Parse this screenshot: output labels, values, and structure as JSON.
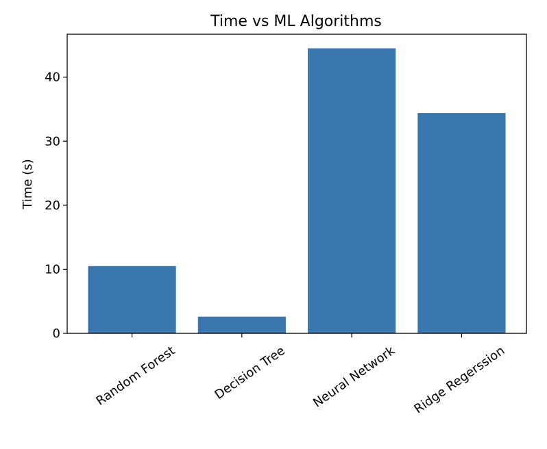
{
  "chart_data": {
    "type": "bar",
    "title": "Time vs ML Algorithms",
    "xlabel": "",
    "ylabel": "Time (s)",
    "categories": [
      "Random Forest",
      "Decision Tree",
      "Neural Network",
      "Ridge Regerssion"
    ],
    "values": [
      10.5,
      2.6,
      44.5,
      34.4
    ],
    "ylim": [
      0,
      46.7
    ],
    "yticks": [
      0,
      10,
      20,
      30,
      40
    ],
    "bar_color": "#3a76ae",
    "grid": false,
    "legend": "none"
  }
}
